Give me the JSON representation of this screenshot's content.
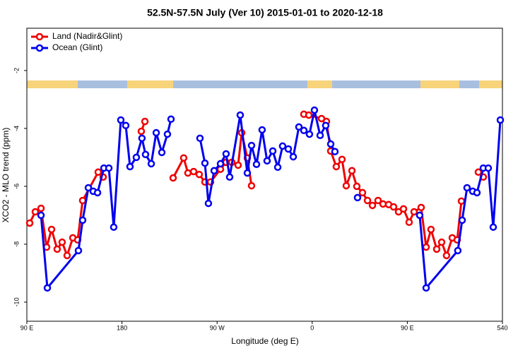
{
  "chart_data": {
    "type": "line",
    "title": "52.5N-57.5N July (Ver 10)   2015-01-01 to 2020-12-18",
    "x_label": "Longitude (deg E)",
    "y_label": "XCO2 - MLO trend (ppm)",
    "xlim": [
      90,
      540
    ],
    "ylim": [
      -10.66,
      -0.54
    ],
    "xticks": [
      {
        "value": 90,
        "label": "90 E"
      },
      180,
      {
        "value": 270,
        "label": "90 W"
      },
      {
        "value": 360,
        "label": "0"
      },
      {
        "value": 450,
        "label": "90 E"
      },
      540
    ],
    "yticks": [
      -10,
      -8,
      -6,
      -4,
      -2
    ],
    "legend": "top-left",
    "series": [
      {
        "name": "Land (Nadir&Glint)",
        "color": "#ee0000",
        "x": [
          92.7,
          98.0,
          103.4,
          108.7,
          113.4,
          118.7,
          123.4,
          128.1,
          133.5,
          138.1,
          142.8,
          157.5,
          162.2,
          180,
          198.3,
          201.7,
          215,
          228.4,
          238.4,
          242.4,
          247.8,
          253.1,
          258.5,
          263.8,
          273.2,
          278.5,
          283.9,
          289.9,
          293.3,
          298.6,
          302.6,
          330,
          352.1,
          356.8,
          368.8,
          373.5,
          377.5,
          382.8,
          388.2,
          392.2,
          397.6,
          402.2,
          407.6,
          412.3,
          417.0,
          422.3,
          427.0,
          432.3,
          437.0,
          441.7,
          446.4,
          451.7,
          456.4,
          463.1,
          467.8,
          472.4,
          477.8,
          482.5,
          487.1,
          492.5,
          497.2,
          501.2,
          510,
          517.2,
          521.9
        ],
        "values": [
          -7.27,
          -6.88,
          -6.76,
          -8.1,
          -7.49,
          -8.17,
          -7.93,
          -8.39,
          -7.78,
          -7.85,
          -6.49,
          -5.51,
          -5.68,
          null,
          -4.1,
          -3.76,
          null,
          -5.71,
          -5.02,
          -5.54,
          -5.49,
          -5.59,
          -5.85,
          -5.85,
          -5.41,
          -5.17,
          -5.17,
          -5.27,
          -4.15,
          -5.02,
          -5.98,
          null,
          -3.51,
          -3.54,
          -3.66,
          -3.76,
          -4.78,
          -5.32,
          -5.07,
          -5.98,
          -5.46,
          -6.0,
          -6.22,
          -6.49,
          -6.66,
          -6.49,
          -6.61,
          -6.63,
          -6.71,
          -6.88,
          -6.78,
          -7.24,
          -6.88,
          -6.73,
          -8.1,
          -7.49,
          -8.17,
          -7.93,
          -8.39,
          -7.78,
          -7.85,
          -6.51,
          null,
          -5.51,
          -5.68
        ]
      },
      {
        "name": "Ocean (Glint)",
        "color": "#0000ee",
        "x": [
          103.4,
          109.4,
          138.8,
          142.8,
          148.2,
          152.8,
          156.9,
          162.9,
          167.6,
          172.2,
          178.9,
          183.6,
          187.6,
          193.6,
          198.9,
          202.3,
          207.7,
          212.4,
          217.7,
          223.0,
          226.4,
          240,
          253.8,
          258.5,
          261.8,
          267.2,
          273.2,
          278.5,
          281.9,
          291.9,
          298.6,
          302.6,
          307.3,
          312.6,
          317.3,
          322.7,
          327.4,
          332.0,
          337.4,
          342.1,
          347.4,
          352.1,
          357.4,
          362.1,
          367.5,
          372.8,
          377.5,
          381.5,
          390,
          402.9,
          430,
          461.7,
          467.8,
          497.8,
          501.9,
          506.5,
          511.9,
          515.9,
          521.9,
          526.6,
          531.3,
          538.0
        ],
        "values": [
          -7.0,
          -9.51,
          -8.22,
          -7.17,
          -6.05,
          -6.17,
          -6.22,
          -5.37,
          -5.37,
          -7.41,
          -3.71,
          -3.9,
          -5.32,
          -5.0,
          -4.34,
          -4.9,
          -5.22,
          -4.15,
          -4.83,
          -4.2,
          -3.68,
          null,
          -4.34,
          -5.2,
          -6.59,
          -5.46,
          -5.22,
          -4.88,
          -5.68,
          -3.54,
          -5.54,
          -4.59,
          -5.24,
          -4.05,
          -5.12,
          -4.78,
          -5.34,
          -4.61,
          -4.71,
          -4.98,
          -3.95,
          -4.07,
          -4.2,
          -3.37,
          -4.24,
          -3.9,
          -4.54,
          -4.8,
          null,
          -6.39,
          null,
          -7.0,
          -9.51,
          -8.22,
          -7.17,
          -6.05,
          -6.17,
          -6.22,
          -5.37,
          -5.37,
          -7.41,
          -3.71
        ]
      }
    ]
  }
}
